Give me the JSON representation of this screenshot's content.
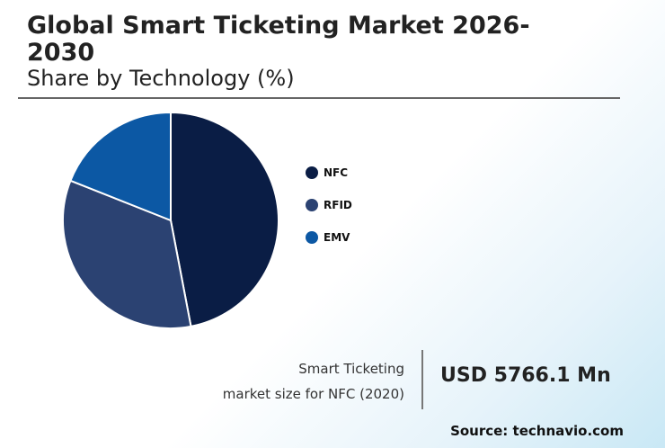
{
  "header": {
    "title": "Global Smart Ticketing Market 2026-2030",
    "subtitle": "Share by Technology (%)"
  },
  "chart_data": {
    "type": "pie",
    "title": "Global Smart Ticketing Market 2026-2030",
    "subtitle": "Share by Technology (%)",
    "categories": [
      "NFC",
      "RFID",
      "EMV"
    ],
    "values": [
      47,
      34,
      19
    ],
    "colors": [
      "#0a1d45",
      "#2b4272",
      "#0c58a4"
    ],
    "legend_position": "right"
  },
  "kpi": {
    "label_line1": "Smart Ticketing",
    "label_line2": "market size for NFC (2020)",
    "value": "USD 5766.1 Mn"
  },
  "source": "Source: technavio.com"
}
